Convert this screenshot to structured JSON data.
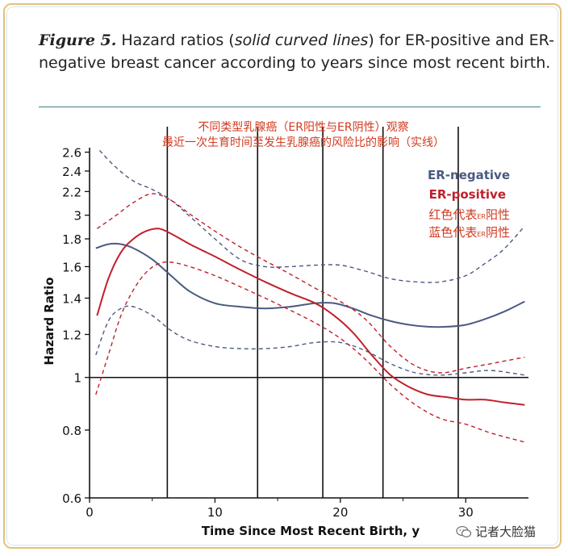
{
  "caption": {
    "figure_label": "Figure 5.",
    "text_before": " Hazard ratios (",
    "text_italic": "solid curved lines",
    "text_after": ") for ER-positive and ER-negative breast cancer according to years since most recent birth."
  },
  "annotation": {
    "line1": "不同类型乳腺癌（ER阳性与ER阴性）观察",
    "line2": "最近一次生育时间至发生乳腺癌的风险比的影响（实线）"
  },
  "legend": {
    "negative_label": "ER-negative",
    "positive_label": "ER-positive",
    "red_note_prefix": "红色代表",
    "red_note_sub": "ER",
    "red_note_suffix": "阳性",
    "blue_note_prefix": "蓝色代表",
    "blue_note_sub": "ER",
    "blue_note_suffix": "阴性"
  },
  "watermark": "记者大脸猫",
  "colors": {
    "negative": "#4a5a80",
    "positive": "#c0202c",
    "annotation": "#d03a20",
    "axis": "#111111"
  },
  "chart_data": {
    "type": "line",
    "title": "",
    "xlabel": "Time Since Most Recent Birth, y",
    "ylabel": "Hazard Ratio",
    "xlim": [
      0,
      35
    ],
    "ylim": [
      0.6,
      2.65
    ],
    "y_scale": "log",
    "x_ticks": [
      0,
      10,
      20,
      30
    ],
    "y_ticks": [
      0.6,
      0.8,
      1,
      1.2,
      1.4,
      1.6,
      1.8,
      2.2,
      2.4,
      2.6
    ],
    "y_tick_labels": [
      "0.6",
      "0.8",
      "1",
      "1.2",
      "1.4",
      "1.6",
      "1.8",
      "2.2",
      "2.4",
      "2.6"
    ],
    "extra_y_tick_label": {
      "label": "3",
      "between": [
        1.8,
        2.2
      ]
    },
    "reference_line_y": 1,
    "vertical_lines_x": [
      6.2,
      13.4,
      18.6,
      23.4,
      29.4
    ],
    "series": [
      {
        "name": "ER-negative",
        "style": "solid",
        "x": [
          0.5,
          1.5,
          2.5,
          3.5,
          5,
          6.5,
          8,
          10,
          12,
          14,
          16,
          18,
          19.5,
          21,
          22.5,
          24,
          25.5,
          27,
          28.5,
          30,
          31.5,
          33,
          34.7
        ],
        "y": [
          1.73,
          1.76,
          1.76,
          1.73,
          1.65,
          1.54,
          1.44,
          1.37,
          1.35,
          1.34,
          1.35,
          1.37,
          1.37,
          1.34,
          1.3,
          1.27,
          1.25,
          1.24,
          1.24,
          1.25,
          1.28,
          1.32,
          1.38
        ]
      },
      {
        "name": "ER-negative upper CI",
        "style": "dashed",
        "x": [
          0.8,
          2,
          3.5,
          5,
          6.5,
          8,
          10,
          12,
          14,
          16,
          18,
          20,
          22,
          24,
          26,
          28,
          30,
          31.5,
          33,
          34.7
        ],
        "y": [
          2.62,
          2.45,
          2.3,
          2.22,
          2.12,
          1.98,
          1.8,
          1.65,
          1.6,
          1.6,
          1.61,
          1.61,
          1.57,
          1.52,
          1.5,
          1.5,
          1.54,
          1.62,
          1.72,
          1.9
        ]
      },
      {
        "name": "ER-negative lower CI",
        "style": "dashed",
        "x": [
          0.5,
          1.5,
          2.5,
          3.5,
          5,
          6.5,
          8,
          10,
          12,
          14,
          16,
          18,
          20,
          22,
          24,
          26,
          28,
          30,
          32,
          34.7
        ],
        "y": [
          1.1,
          1.27,
          1.34,
          1.35,
          1.3,
          1.22,
          1.17,
          1.14,
          1.13,
          1.13,
          1.14,
          1.16,
          1.16,
          1.12,
          1.06,
          1.02,
          1.01,
          1.02,
          1.03,
          1.01
        ]
      },
      {
        "name": "ER-positive",
        "style": "solid",
        "x": [
          0.6,
          1.5,
          2.5,
          3.5,
          4.5,
          5.5,
          6.5,
          8,
          10,
          12,
          14,
          16,
          18,
          19.5,
          21,
          22.5,
          24,
          25.5,
          27,
          28.5,
          30,
          31.5,
          33,
          34.7
        ],
        "y": [
          1.3,
          1.52,
          1.7,
          1.8,
          1.86,
          1.88,
          1.84,
          1.76,
          1.67,
          1.58,
          1.5,
          1.43,
          1.37,
          1.3,
          1.21,
          1.1,
          1.01,
          0.96,
          0.93,
          0.92,
          0.91,
          0.91,
          0.9,
          0.89
        ]
      },
      {
        "name": "ER-positive upper CI",
        "style": "dashed",
        "x": [
          0.6,
          2,
          3.5,
          5,
          6.5,
          8,
          10,
          12,
          14,
          16,
          18,
          20,
          22,
          24,
          26,
          28,
          30,
          32,
          34.7
        ],
        "y": [
          1.88,
          1.98,
          2.1,
          2.18,
          2.12,
          2.0,
          1.86,
          1.74,
          1.64,
          1.55,
          1.46,
          1.38,
          1.28,
          1.14,
          1.05,
          1.02,
          1.04,
          1.06,
          1.09
        ]
      },
      {
        "name": "ER-positive lower CI",
        "style": "dashed",
        "x": [
          0.5,
          1.5,
          2.5,
          3.5,
          4.5,
          5.5,
          6.5,
          8,
          10,
          12,
          14,
          16,
          18,
          20,
          22,
          24,
          26,
          28,
          30,
          32,
          34.7
        ],
        "y": [
          0.93,
          1.1,
          1.3,
          1.45,
          1.56,
          1.62,
          1.63,
          1.6,
          1.54,
          1.47,
          1.4,
          1.33,
          1.26,
          1.18,
          1.08,
          0.97,
          0.89,
          0.84,
          0.82,
          0.79,
          0.76
        ]
      }
    ]
  }
}
